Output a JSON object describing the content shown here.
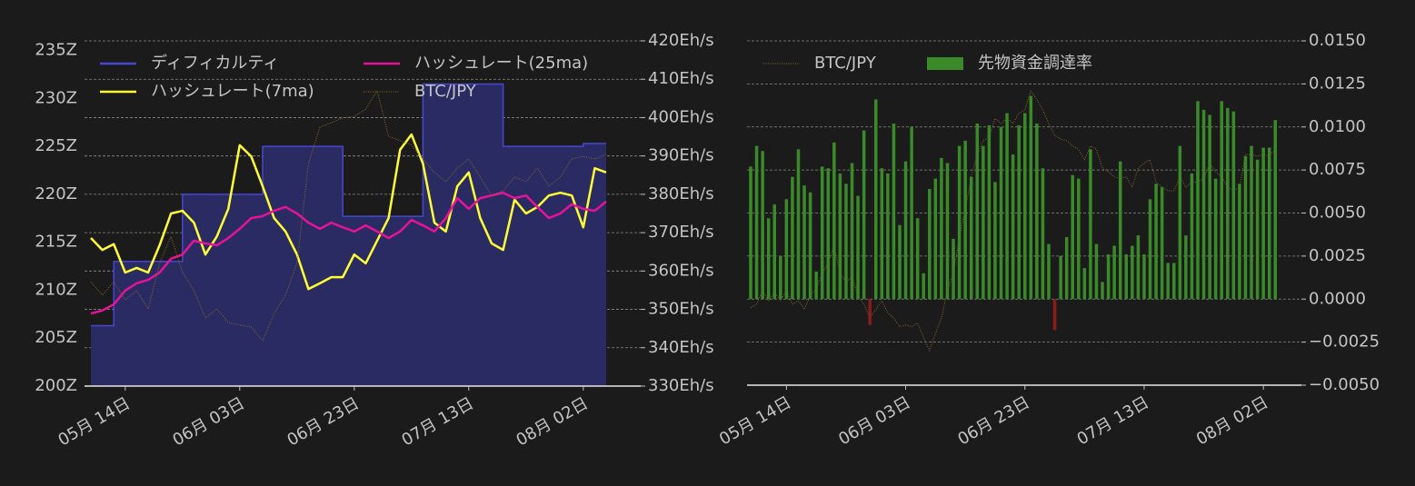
{
  "chart_data": [
    {
      "type": "line",
      "categories": [
        null,
        null,
        null,
        "05月 14日",
        null,
        null,
        null,
        null,
        null,
        null,
        null,
        null,
        null,
        "06月 03日",
        null,
        null,
        null,
        null,
        null,
        null,
        null,
        null,
        null,
        "06月 23日",
        null,
        null,
        null,
        null,
        null,
        null,
        null,
        null,
        null,
        "07月 13日",
        null,
        null,
        null,
        null,
        null,
        null,
        null,
        null,
        null,
        "08月 02日",
        null,
        null
      ],
      "series": [
        {
          "name": "ディフィカルティ",
          "color": "#4646d2",
          "fill": "#2b2b63",
          "step": true,
          "values": [
            206.3,
            206.3,
            213,
            213,
            213,
            213,
            213,
            213,
            220,
            220,
            220,
            220,
            220,
            220,
            220,
            225,
            225,
            225,
            225,
            225,
            225,
            225,
            217.7,
            217.7,
            217.7,
            217.7,
            217.7,
            217.7,
            217.7,
            231.5,
            231.5,
            231.5,
            231.5,
            231.5,
            231.5,
            231.5,
            225,
            225,
            225,
            225,
            225,
            225,
            225,
            225.3,
            225.3,
            225.3
          ]
        },
        {
          "name": "ハッシュレート(7ma)",
          "color": "#ffff33",
          "axis": "y2",
          "values": [
            368.6,
            365.5,
            367,
            359.6,
            360.8,
            359.6,
            366.7,
            375,
            375.7,
            372.6,
            364.3,
            369,
            376.2,
            392.8,
            389.9,
            382.1,
            373.8,
            370.3,
            364.3,
            355.3,
            356.8,
            358.4,
            358.4,
            364.3,
            362,
            367.9,
            373.8,
            391.6,
            395.6,
            388,
            372.6,
            370.3,
            382.1,
            385.7,
            373.8,
            367.2,
            365.5,
            378.6,
            375,
            376.7,
            379.7,
            380.4,
            379.7,
            371.4,
            386.8,
            385.7
          ]
        },
        {
          "name": "ハッシュレート(25ma)",
          "color": "#e6139a",
          "axis": "y2",
          "values": [
            348.9,
            349.7,
            351.3,
            354.9,
            356.8,
            357.7,
            359.6,
            363.2,
            364.3,
            367.9,
            367.2,
            366.7,
            368.6,
            371,
            373.8,
            374.3,
            375.7,
            376.7,
            375,
            372.6,
            371,
            372.6,
            371.4,
            370.3,
            371.9,
            370.3,
            368.6,
            370.3,
            373.3,
            371.9,
            370.3,
            373.8,
            379,
            376.2,
            379,
            379.7,
            380.4,
            379,
            379.7,
            376.7,
            373.8,
            375,
            377.4,
            376.2,
            375.7,
            378.1
          ]
        },
        {
          "name": "BTC/JPY",
          "color": "#8a6a2a",
          "axis": "y2",
          "linestyle": "dotted",
          "values": [
            357.2,
            353.7,
            357.2,
            352.5,
            354.9,
            350.1,
            362,
            369,
            359.6,
            354.9,
            347.8,
            350.1,
            346.6,
            345.9,
            345.4,
            341.8,
            348.9,
            353.7,
            362,
            388,
            397.5,
            398.7,
            399.9,
            400.3,
            402.2,
            407,
            395.1,
            394,
            392.8,
            389.2,
            385.7,
            383.3,
            386.8,
            389.2,
            384.5,
            379.7,
            380.9,
            384.5,
            383.3,
            386.8,
            382.1,
            384.5,
            389.2,
            389.9,
            389.2,
            390.4
          ]
        }
      ],
      "ylim": [
        200,
        236
      ],
      "yticks": [
        {
          "value": 200,
          "label": "200Z"
        },
        {
          "value": 205,
          "label": "205Z"
        },
        {
          "value": 210,
          "label": "210Z"
        },
        {
          "value": 215,
          "label": "215Z"
        },
        {
          "value": 220,
          "label": "220Z"
        },
        {
          "value": 225,
          "label": "225Z"
        },
        {
          "value": 230,
          "label": "230Z"
        },
        {
          "value": 235,
          "label": "235Z"
        }
      ],
      "y2lim": [
        330,
        420
      ],
      "y2ticks": [
        {
          "value": 330,
          "label": "330Eh/s"
        },
        {
          "value": 340,
          "label": "340Eh/s"
        },
        {
          "value": 350,
          "label": "350Eh/s"
        },
        {
          "value": 360,
          "label": "360Eh/s"
        },
        {
          "value": 370,
          "label": "370Eh/s"
        },
        {
          "value": 380,
          "label": "380Eh/s"
        },
        {
          "value": 390,
          "label": "390Eh/s"
        },
        {
          "value": 400,
          "label": "400Eh/s"
        },
        {
          "value": 410,
          "label": "410Eh/s"
        },
        {
          "value": 420,
          "label": "420Eh/s"
        }
      ],
      "grid": true,
      "legend": "upper left"
    },
    {
      "type": "bar",
      "categories": [
        null,
        null,
        null,
        null,
        null,
        null,
        "05月 14日",
        null,
        null,
        null,
        null,
        null,
        null,
        null,
        null,
        null,
        null,
        null,
        null,
        null,
        null,
        null,
        null,
        null,
        null,
        null,
        "06月 03日",
        null,
        null,
        null,
        null,
        null,
        null,
        null,
        null,
        null,
        null,
        null,
        null,
        null,
        null,
        null,
        null,
        null,
        null,
        null,
        "06月 23日",
        null,
        null,
        null,
        null,
        null,
        null,
        null,
        null,
        null,
        null,
        null,
        null,
        null,
        null,
        null,
        null,
        null,
        null,
        null,
        "07月 13日",
        null,
        null,
        null,
        null,
        null,
        null,
        null,
        null,
        null,
        null,
        null,
        null,
        null,
        null,
        null,
        null,
        null,
        null,
        null,
        "08月 02日",
        null,
        null
      ],
      "series": [
        {
          "name": "BTC/JPY",
          "type": "line",
          "color": "#8a6a2a",
          "linestyle": "dotted",
          "values": [
            -0.0005,
            -0.0003,
            0.0005,
            -0.0001,
            0.0004,
            -0.0001,
            0.0005,
            -0.0003,
            -0.0001,
            -0.0006,
            0.0002,
            0.0006,
            0.0015,
            0.0021,
            0.0031,
            0.0015,
            0.001,
            0.0013,
            0.0002,
            -0.0003,
            -0.0011,
            -0.0006,
            -0.0001,
            -0.0008,
            -0.0011,
            -0.0016,
            -0.0015,
            -0.0016,
            -0.0014,
            -0.0022,
            -0.003,
            -0.002,
            -0.0011,
            0.0005,
            0.0015,
            0.0036,
            0.0052,
            0.0071,
            0.0084,
            0.0092,
            0.0094,
            0.0105,
            0.0102,
            0.0105,
            0.0102,
            0.0108,
            0.011,
            0.0121,
            0.0116,
            0.011,
            0.0102,
            0.0095,
            0.0093,
            0.0092,
            0.0089,
            0.0087,
            0.0081,
            0.0089,
            0.0087,
            0.0076,
            0.0074,
            0.0071,
            0.007,
            0.0071,
            0.0065,
            0.0076,
            0.0079,
            0.0081,
            0.0068,
            0.0065,
            0.0063,
            0.0063,
            0.0071,
            0.0065,
            0.0068,
            0.0068,
            0.007,
            0.0079,
            0.0074,
            0.0071,
            0.0065,
            0.0063,
            0.0065,
            0.0084,
            0.0084,
            0.0083,
            0.0084,
            0.0083,
            0.0087
          ]
        },
        {
          "name": "先物資金調達率",
          "color": "#3a8a2a",
          "negative_color": "#8b1c1c",
          "values": [
            0.0077,
            0.0089,
            0.0086,
            0.0047,
            0.0055,
            0.0025,
            0.0058,
            0.0071,
            0.0087,
            0.0066,
            0.0062,
            0.0016,
            0.0077,
            0.0076,
            0.0091,
            0.0073,
            0.0067,
            0.0079,
            0.006,
            0.0098,
            -0.0015,
            0.0116,
            0.0076,
            0.0073,
            0.0102,
            0.0043,
            0.008,
            0.01,
            0.0047,
            0.0015,
            0.0064,
            0.007,
            0.0082,
            0.0079,
            0.0035,
            0.0089,
            0.0092,
            0.0071,
            0.0102,
            0.0089,
            0.0101,
            0.0068,
            0.01,
            0.0108,
            0.0084,
            0.0101,
            0.0108,
            0.0118,
            0.0102,
            0.0076,
            0.0032,
            -0.0018,
            0.0025,
            0.0036,
            0.0072,
            0.007,
            0.0018,
            0.0087,
            0.0032,
            0.001,
            0.0026,
            0.0031,
            0.008,
            0.0026,
            0.0031,
            0.0037,
            0.0026,
            0.0058,
            0.0067,
            0.0065,
            0.0021,
            0.0021,
            0.0089,
            0.0037,
            0.0073,
            0.0115,
            0.011,
            0.0107,
            0.007,
            0.0115,
            0.0111,
            0.0109,
            0.0067,
            0.0083,
            0.0089,
            0.0081,
            0.0088,
            0.0088,
            0.0104
          ]
        }
      ],
      "ylim": [
        -0.005,
        0.015
      ],
      "yticks": [
        {
          "value": -0.005,
          "label": "−0.0050"
        },
        {
          "value": -0.0025,
          "label": "−0.0025"
        },
        {
          "value": 0,
          "label": "0.0000"
        },
        {
          "value": 0.0025,
          "label": "0.0025"
        },
        {
          "value": 0.005,
          "label": "0.0050"
        },
        {
          "value": 0.0075,
          "label": "0.0075"
        },
        {
          "value": 0.01,
          "label": "0.0100"
        },
        {
          "value": 0.0125,
          "label": "0.0125"
        },
        {
          "value": 0.015,
          "label": "0.0150"
        }
      ],
      "grid": true,
      "legend": "upper left"
    }
  ]
}
